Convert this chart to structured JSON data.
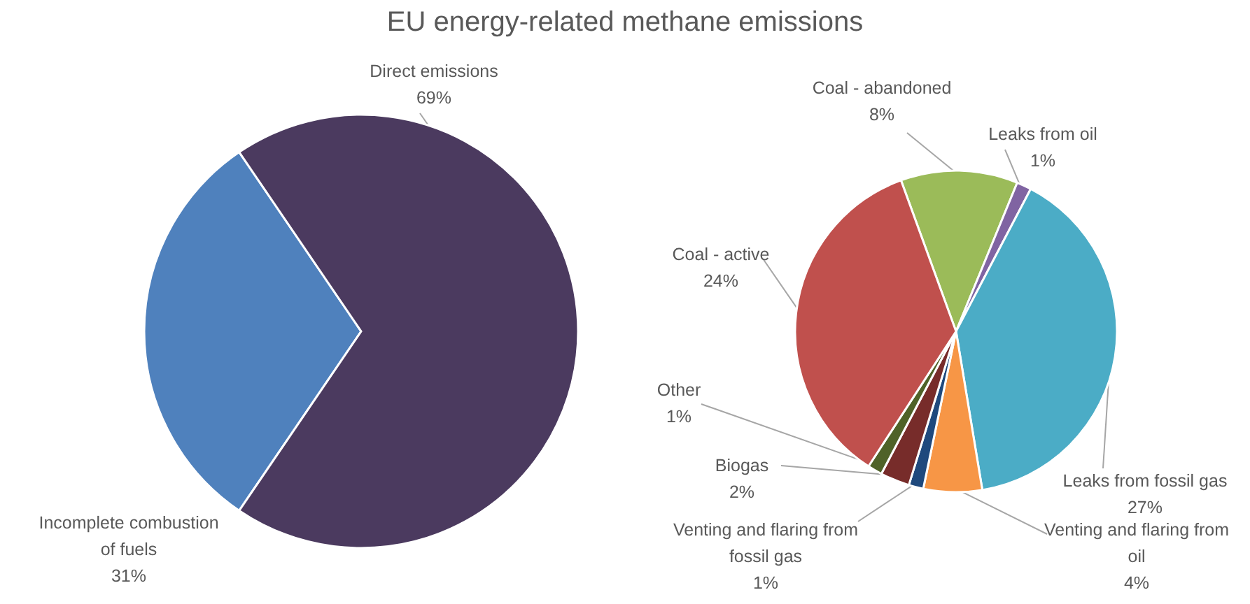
{
  "chart_data": [
    {
      "type": "pie",
      "title": "EU energy-related methane emissions",
      "categories": [
        "Incomplete combustion of fuels",
        "Direct emissions"
      ],
      "values": [
        31,
        69
      ],
      "colors": [
        "#4f81bd",
        "#4b3a5f"
      ],
      "value_labels": [
        "31%",
        "69%"
      ]
    },
    {
      "type": "pie",
      "categories": [
        "Coal - abandoned",
        "Leaks from oil",
        "Leaks from fossil gas",
        "Venting and flaring from oil",
        "Venting and flaring from fossil gas",
        "Biogas",
        "Other",
        "Coal - active"
      ],
      "values": [
        8,
        1,
        27,
        4,
        1,
        2,
        1,
        24
      ],
      "colors": [
        "#9bbb59",
        "#8064a2",
        "#4bacc6",
        "#f79646",
        "#1f497d",
        "#772c2a",
        "#4f6228",
        "#c0504d"
      ],
      "value_labels": [
        "8%",
        "1%",
        "27%",
        "4%",
        "1%",
        "2%",
        "1%",
        "24%"
      ]
    }
  ]
}
